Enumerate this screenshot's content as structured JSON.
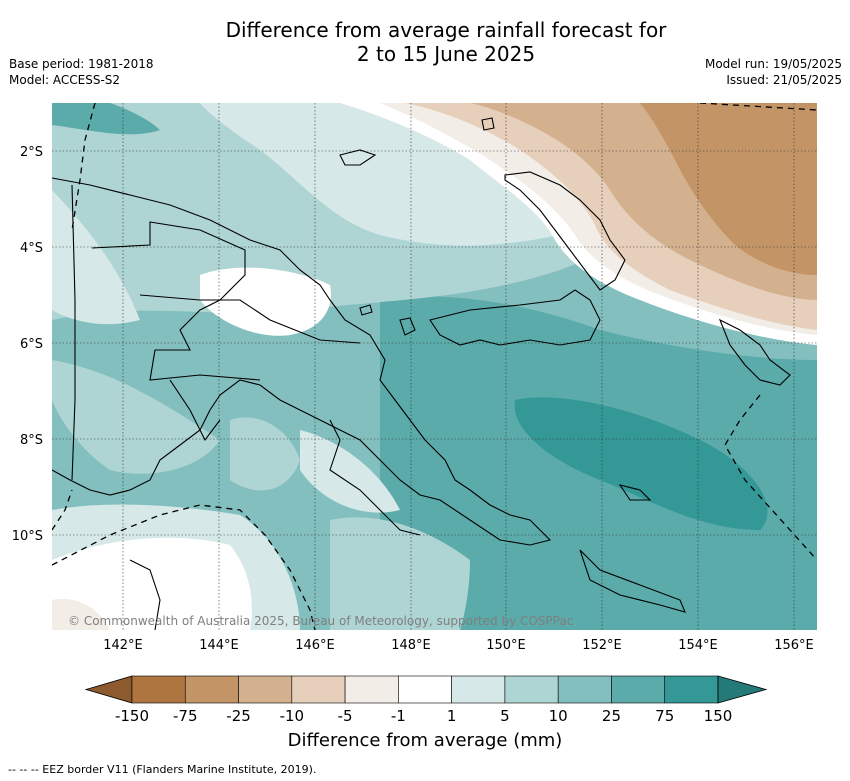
{
  "title": {
    "line1": "Difference from average rainfall forecast for",
    "line2": "2 to 15 June 2025"
  },
  "meta": {
    "base_period": "Base period: 1981-2018",
    "model": "Model: ACCESS-S2",
    "model_run": "Model run: 19/05/2025",
    "issued": "Issued: 21/05/2025"
  },
  "map": {
    "region": "Papua New Guinea",
    "lat_ticks": [
      "2°S",
      "4°S",
      "6°S",
      "8°S",
      "10°S"
    ],
    "lon_ticks": [
      "142°E",
      "144°E",
      "146°E",
      "148°E",
      "150°E",
      "152°E",
      "154°E",
      "156°E"
    ],
    "gridlines": true,
    "copyright": "© Commonwealth of Australia 2025, Bureau of Meteorology, supported by COSPPac"
  },
  "legend": {
    "title": "Difference from average (mm)",
    "labels": [
      "-150",
      "-75",
      "-25",
      "-10",
      "-5",
      "-1",
      "1",
      "5",
      "10",
      "25",
      "75",
      "150"
    ],
    "colors": [
      "#8c5a2e",
      "#ae7540",
      "#c39466",
      "#d3b08e",
      "#e6cfbb",
      "#f2ede6",
      "#ffffff",
      "#d6e9e8",
      "#aed5d4",
      "#83bfbe",
      "#5aabaa",
      "#339896",
      "#247a78"
    ]
  },
  "footer": {
    "eez_note": "--  --  -- EEZ border V11 (Flanders Marine Institute, 2019)."
  }
}
